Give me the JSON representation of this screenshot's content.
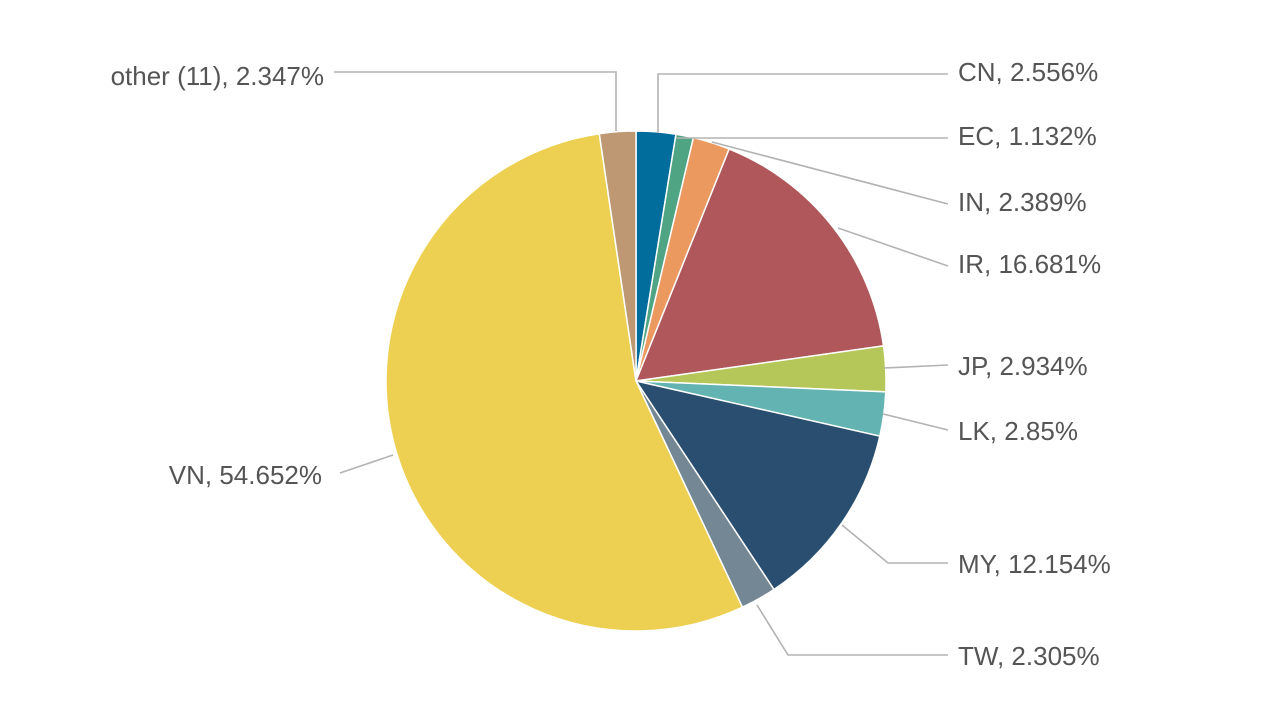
{
  "chart_data": {
    "type": "pie",
    "title": "",
    "start_angle_deg": 0,
    "direction": "clockwise",
    "slices": [
      {
        "label": "CN, 2.556%",
        "name": "CN",
        "value": 2.556,
        "color": "#006d9c"
      },
      {
        "label": "EC, 1.132%",
        "name": "EC",
        "value": 1.132,
        "color": "#4fa484"
      },
      {
        "label": "IN, 2.389%",
        "name": "IN",
        "value": 2.389,
        "color": "#ec9960"
      },
      {
        "label": "IR, 16.681%",
        "name": "IR",
        "value": 16.681,
        "color": "#af575a"
      },
      {
        "label": "JP, 2.934%",
        "name": "JP",
        "value": 2.934,
        "color": "#b6c75a"
      },
      {
        "label": "LK, 2.85%",
        "name": "LK",
        "value": 2.85,
        "color": "#62b3b2"
      },
      {
        "label": "MY, 12.154%",
        "name": "MY",
        "value": 12.154,
        "color": "#294e70"
      },
      {
        "label": "TW, 2.305%",
        "name": "TW",
        "value": 2.305,
        "color": "#738795"
      },
      {
        "label": "VN, 54.652%",
        "name": "VN",
        "value": 54.652,
        "color": "#edd051"
      },
      {
        "label": "other (11), 2.347%",
        "name": "other (11)",
        "value": 2.347,
        "color": "#bd9872"
      }
    ]
  }
}
